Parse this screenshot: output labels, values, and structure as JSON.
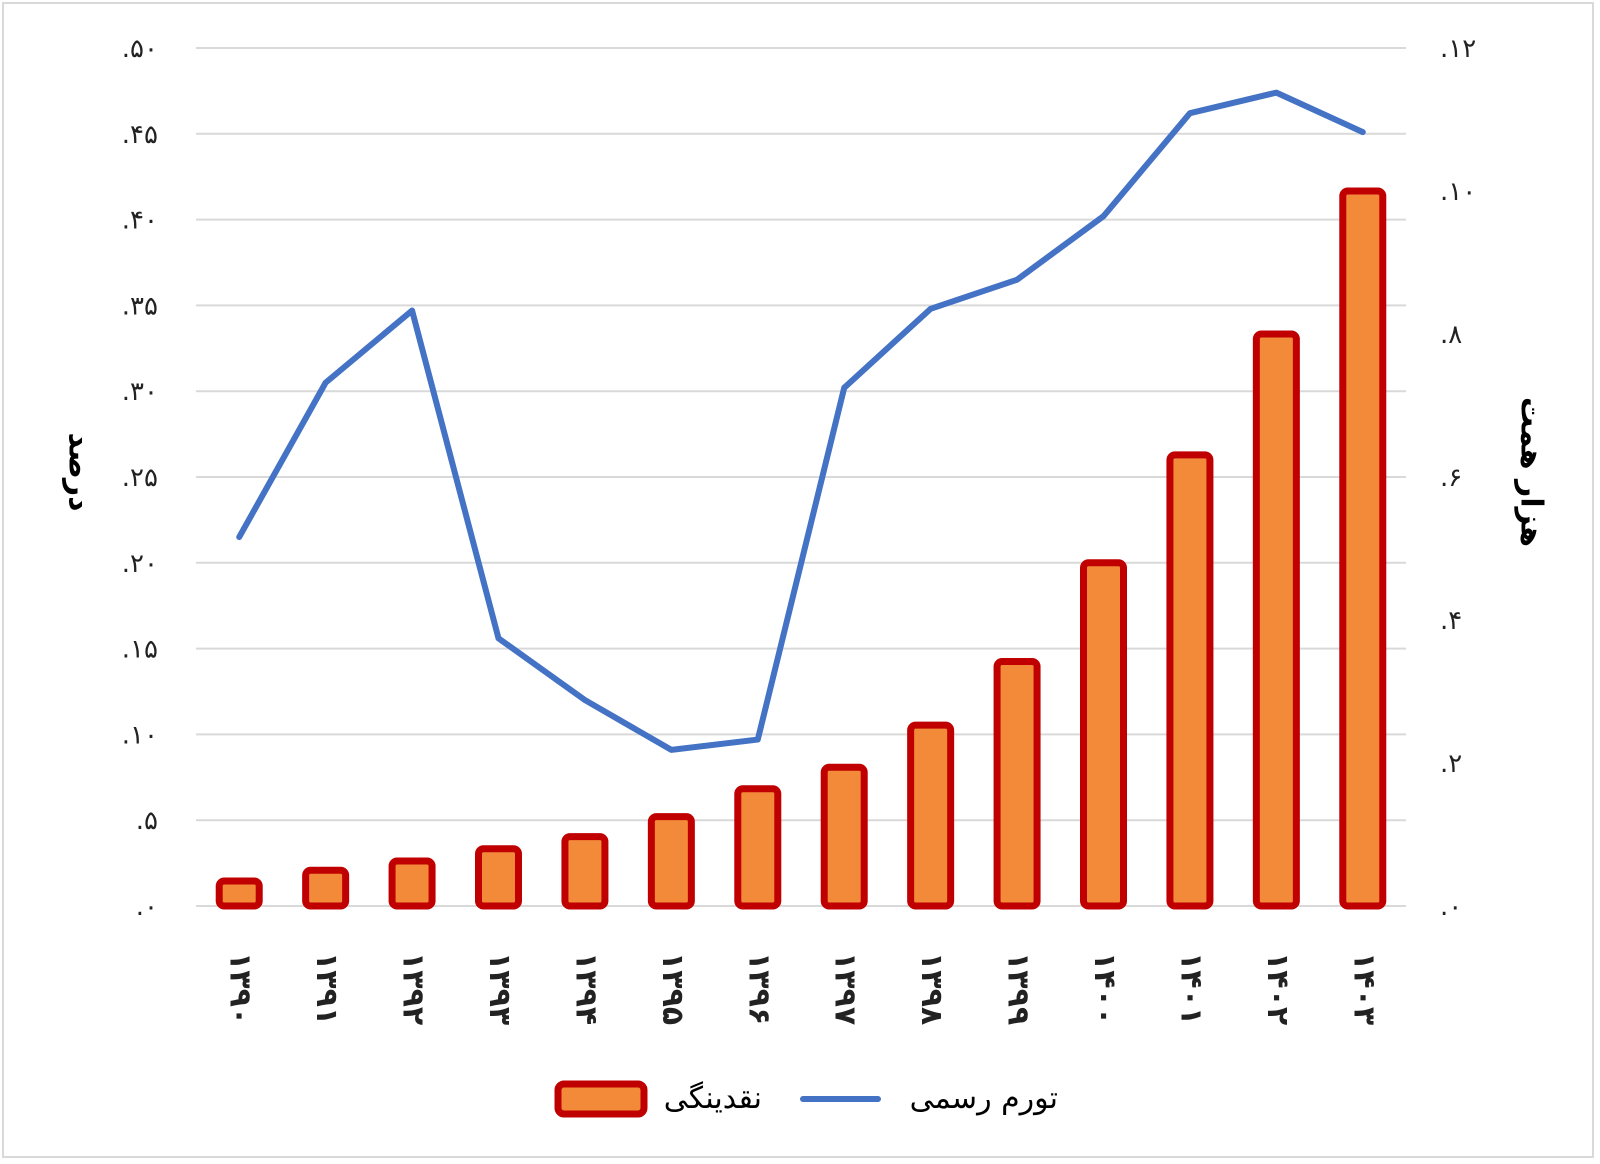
{
  "chart_data": {
    "type": "bar",
    "categories": [
      "۱۳۹۰",
      "۱۳۹۱",
      "۱۳۹۲",
      "۱۳۹۳",
      "۱۳۹۴",
      "۱۳۹۵",
      "۱۳۹۶",
      "۱۳۹۷",
      "۱۳۹۸",
      "۱۳۹۹",
      "۱۴۰۰",
      "۱۴۰۱",
      "۱۴۰۲",
      "۱۴۰۳"
    ],
    "series": [
      {
        "name": "نقدینگی",
        "type": "bar",
        "axis": "right",
        "values": [
          0.35,
          0.5,
          0.63,
          0.8,
          0.97,
          1.25,
          1.64,
          1.94,
          2.53,
          3.42,
          4.8,
          6.31,
          8.0,
          10.0
        ],
        "color": "#f28a3a",
        "border_color": "#c00000"
      },
      {
        "name": "تورم رسمی",
        "type": "line",
        "axis": "left",
        "values": [
          21.5,
          30.5,
          34.7,
          15.6,
          12.0,
          9.1,
          9.7,
          30.2,
          34.8,
          36.5,
          40.2,
          46.2,
          47.4,
          45.1
        ],
        "color": "#4472c4"
      }
    ],
    "left_axis": {
      "title": "درصد",
      "ticks": [
        "۰",
        "۵",
        "۱۰",
        "۱۵",
        "۲۰",
        "۲۵",
        "۳۰",
        "۳۵",
        "۴۰",
        "۴۵",
        "۵۰"
      ],
      "range": [
        0,
        50
      ]
    },
    "right_axis": {
      "title": "هزار همت",
      "ticks": [
        "۰",
        "۲",
        "۴",
        "۶",
        "۸",
        "۱۰",
        "۱۲"
      ],
      "range": [
        0,
        12
      ]
    },
    "grid": true,
    "legend_position": "bottom"
  }
}
